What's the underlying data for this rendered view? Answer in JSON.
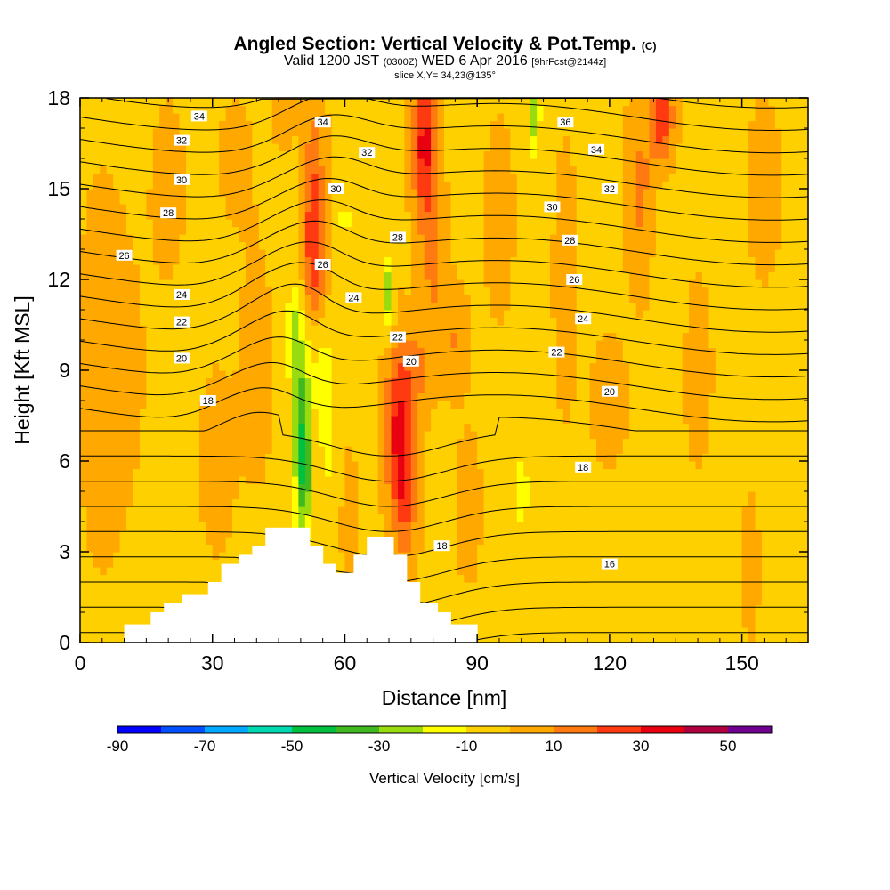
{
  "title": {
    "main": "Angled Section: Vertical Velocity & Pot.Temp.",
    "main_suffix": "(C)",
    "valid_a": "Valid 1200 JST",
    "valid_b": "(0300Z)",
    "valid_c": "WED 6 Apr 2016",
    "valid_d": "[9hrFcst@2144z]",
    "slice": "slice X,Y= 34,23@135°"
  },
  "colors": {
    "levels": [
      "#0000ff",
      "#0050ff",
      "#00a8ff",
      "#00d8b0",
      "#00c040",
      "#40b820",
      "#98dc10",
      "#ffff00",
      "#ffd000",
      "#ffa800",
      "#ff7a10",
      "#ff3a10",
      "#e80010",
      "#b00040",
      "#700090"
    ],
    "terrain": "#ffffff",
    "contour": "#000000"
  },
  "chart_data": {
    "type": "heatmap",
    "xlabel": "Distance [nm]",
    "ylabel": "Height [Kft MSL]",
    "xlim": [
      0,
      165
    ],
    "ylim": [
      0,
      18
    ],
    "xticks": [
      0,
      30,
      60,
      90,
      120,
      150
    ],
    "yticks": [
      0,
      3,
      6,
      9,
      12,
      15,
      18
    ],
    "colorbar": {
      "title": "Vertical Velocity [cm/s]",
      "bounds": [
        -90,
        -80,
        -70,
        -60,
        -50,
        -40,
        -30,
        -20,
        -10,
        0,
        10,
        20,
        30,
        40,
        50,
        60
      ],
      "tick_labels": [
        -90,
        -70,
        -50,
        -30,
        -10,
        10,
        30,
        50
      ]
    },
    "velocity_features": [
      {
        "x": 5,
        "y": 9,
        "value": 5,
        "rx": 6,
        "ry": 7
      },
      {
        "x": 12,
        "y": 9,
        "value": 2,
        "rx": 5,
        "ry": 5
      },
      {
        "x": 20,
        "y": 15,
        "value": 5,
        "rx": 4,
        "ry": 3
      },
      {
        "x": 35,
        "y": 16,
        "value": 3,
        "rx": 6,
        "ry": 3
      },
      {
        "x": 31,
        "y": 6,
        "value": 6,
        "rx": 4,
        "ry": 3
      },
      {
        "x": 40,
        "y": 9,
        "value": 5,
        "rx": 4,
        "ry": 4
      },
      {
        "x": 46,
        "y": 17.5,
        "value": 12,
        "rx": 2,
        "ry": 1
      },
      {
        "x": 53,
        "y": 14.5,
        "value": 22,
        "rx": 2.5,
        "ry": 3.5
      },
      {
        "x": 53,
        "y": 12.5,
        "value": 14,
        "rx": 2.5,
        "ry": 2
      },
      {
        "x": 50,
        "y": 7.5,
        "value": -30,
        "rx": 2.2,
        "ry": 3.5
      },
      {
        "x": 51,
        "y": 5.5,
        "value": -25,
        "rx": 1.5,
        "ry": 1.8
      },
      {
        "x": 48,
        "y": 10.3,
        "value": -20,
        "rx": 1.2,
        "ry": 1.2
      },
      {
        "x": 56,
        "y": 7,
        "value": -10,
        "rx": 2.5,
        "ry": 3
      },
      {
        "x": 60,
        "y": 14,
        "value": -9,
        "rx": 2.5,
        "ry": 2
      },
      {
        "x": 54,
        "y": 9.5,
        "value": -8,
        "rx": 3.5,
        "ry": 1.5
      },
      {
        "x": 61,
        "y": 4,
        "value": 12,
        "rx": 1.5,
        "ry": 2
      },
      {
        "x": 70,
        "y": 11.5,
        "value": -28,
        "rx": 1.2,
        "ry": 1.2
      },
      {
        "x": 72,
        "y": 7,
        "value": 32,
        "rx": 2.8,
        "ry": 2.8
      },
      {
        "x": 74,
        "y": 5,
        "value": 20,
        "rx": 2.5,
        "ry": 2.5
      },
      {
        "x": 76,
        "y": 9,
        "value": 14,
        "rx": 3,
        "ry": 1.5
      },
      {
        "x": 78,
        "y": 16.5,
        "value": 35,
        "rx": 2.5,
        "ry": 2.5
      },
      {
        "x": 80,
        "y": 12.5,
        "value": 13,
        "rx": 3,
        "ry": 3
      },
      {
        "x": 85,
        "y": 10,
        "value": 12,
        "rx": 3,
        "ry": 1.5
      },
      {
        "x": 88,
        "y": 4.5,
        "value": 6,
        "rx": 3,
        "ry": 2.5
      },
      {
        "x": 95,
        "y": 14,
        "value": 8,
        "rx": 3,
        "ry": 3
      },
      {
        "x": 100,
        "y": 5,
        "value": -9,
        "rx": 4,
        "ry": 3
      },
      {
        "x": 103,
        "y": 17.5,
        "value": -25,
        "rx": 1.2,
        "ry": 1.5
      },
      {
        "x": 110,
        "y": 12,
        "value": 5,
        "rx": 3,
        "ry": 5
      },
      {
        "x": 120,
        "y": 8,
        "value": 7,
        "rx": 4,
        "ry": 2
      },
      {
        "x": 127,
        "y": 15,
        "value": 14,
        "rx": 3,
        "ry": 3
      },
      {
        "x": 132,
        "y": 17.3,
        "value": 30,
        "rx": 2.5,
        "ry": 1.5
      },
      {
        "x": 133,
        "y": 12,
        "value": -8,
        "rx": 2.5,
        "ry": 3
      },
      {
        "x": 140,
        "y": 9,
        "value": 4,
        "rx": 4,
        "ry": 4
      },
      {
        "x": 125,
        "y": 2.5,
        "value": -8,
        "rx": 3,
        "ry": 2
      },
      {
        "x": 152,
        "y": 2.5,
        "value": 12,
        "rx": 1.5,
        "ry": 1.8
      },
      {
        "x": 155,
        "y": 15,
        "value": 6,
        "rx": 4,
        "ry": 3
      }
    ],
    "contour_levels": [
      10,
      11,
      12,
      13,
      14,
      15,
      16,
      17,
      18,
      19,
      20,
      21,
      22,
      23,
      24,
      25,
      26,
      27,
      28,
      29,
      30,
      31,
      32,
      33,
      34,
      35,
      36,
      37
    ],
    "contour_labels": [
      {
        "text": "34",
        "x": 27,
        "y": 17.4
      },
      {
        "text": "34",
        "x": 55,
        "y": 17.2
      },
      {
        "text": "36",
        "x": 110,
        "y": 17.2
      },
      {
        "text": "32",
        "x": 23,
        "y": 16.6
      },
      {
        "text": "32",
        "x": 65,
        "y": 16.2
      },
      {
        "text": "34",
        "x": 117,
        "y": 16.3
      },
      {
        "text": "30",
        "x": 23,
        "y": 15.3
      },
      {
        "text": "30",
        "x": 58,
        "y": 15.0
      },
      {
        "text": "32",
        "x": 120,
        "y": 15.0
      },
      {
        "text": "28",
        "x": 20,
        "y": 14.2
      },
      {
        "text": "30",
        "x": 107,
        "y": 14.4
      },
      {
        "text": "28",
        "x": 72,
        "y": 13.4
      },
      {
        "text": "26",
        "x": 10,
        "y": 12.8
      },
      {
        "text": "28",
        "x": 111,
        "y": 13.3
      },
      {
        "text": "26",
        "x": 55,
        "y": 12.5
      },
      {
        "text": "26",
        "x": 112,
        "y": 12.0
      },
      {
        "text": "24",
        "x": 23,
        "y": 11.5
      },
      {
        "text": "24",
        "x": 62,
        "y": 11.4
      },
      {
        "text": "24",
        "x": 114,
        "y": 10.7
      },
      {
        "text": "22",
        "x": 23,
        "y": 10.6
      },
      {
        "text": "22",
        "x": 72,
        "y": 10.1
      },
      {
        "text": "22",
        "x": 108,
        "y": 9.6
      },
      {
        "text": "20",
        "x": 23,
        "y": 9.4
      },
      {
        "text": "20",
        "x": 75,
        "y": 9.3
      },
      {
        "text": "20",
        "x": 120,
        "y": 8.3
      },
      {
        "text": "18",
        "x": 29,
        "y": 8.0
      },
      {
        "text": "18",
        "x": 114,
        "y": 5.8
      },
      {
        "text": "18",
        "x": 82,
        "y": 3.2
      },
      {
        "text": "16",
        "x": 120,
        "y": 2.6
      }
    ],
    "terrain_profile": {
      "x": [
        10,
        16,
        19,
        23,
        29,
        32,
        36,
        39,
        42,
        52,
        55,
        58,
        62,
        65,
        71,
        74,
        77,
        81,
        84,
        90
      ],
      "top": [
        0.6,
        1.0,
        1.3,
        1.6,
        2.0,
        2.6,
        2.9,
        3.2,
        3.8,
        3.2,
        2.6,
        2.3,
        2.9,
        3.5,
        2.9,
        2.0,
        1.3,
        1.0,
        0.6,
        0
      ]
    }
  }
}
